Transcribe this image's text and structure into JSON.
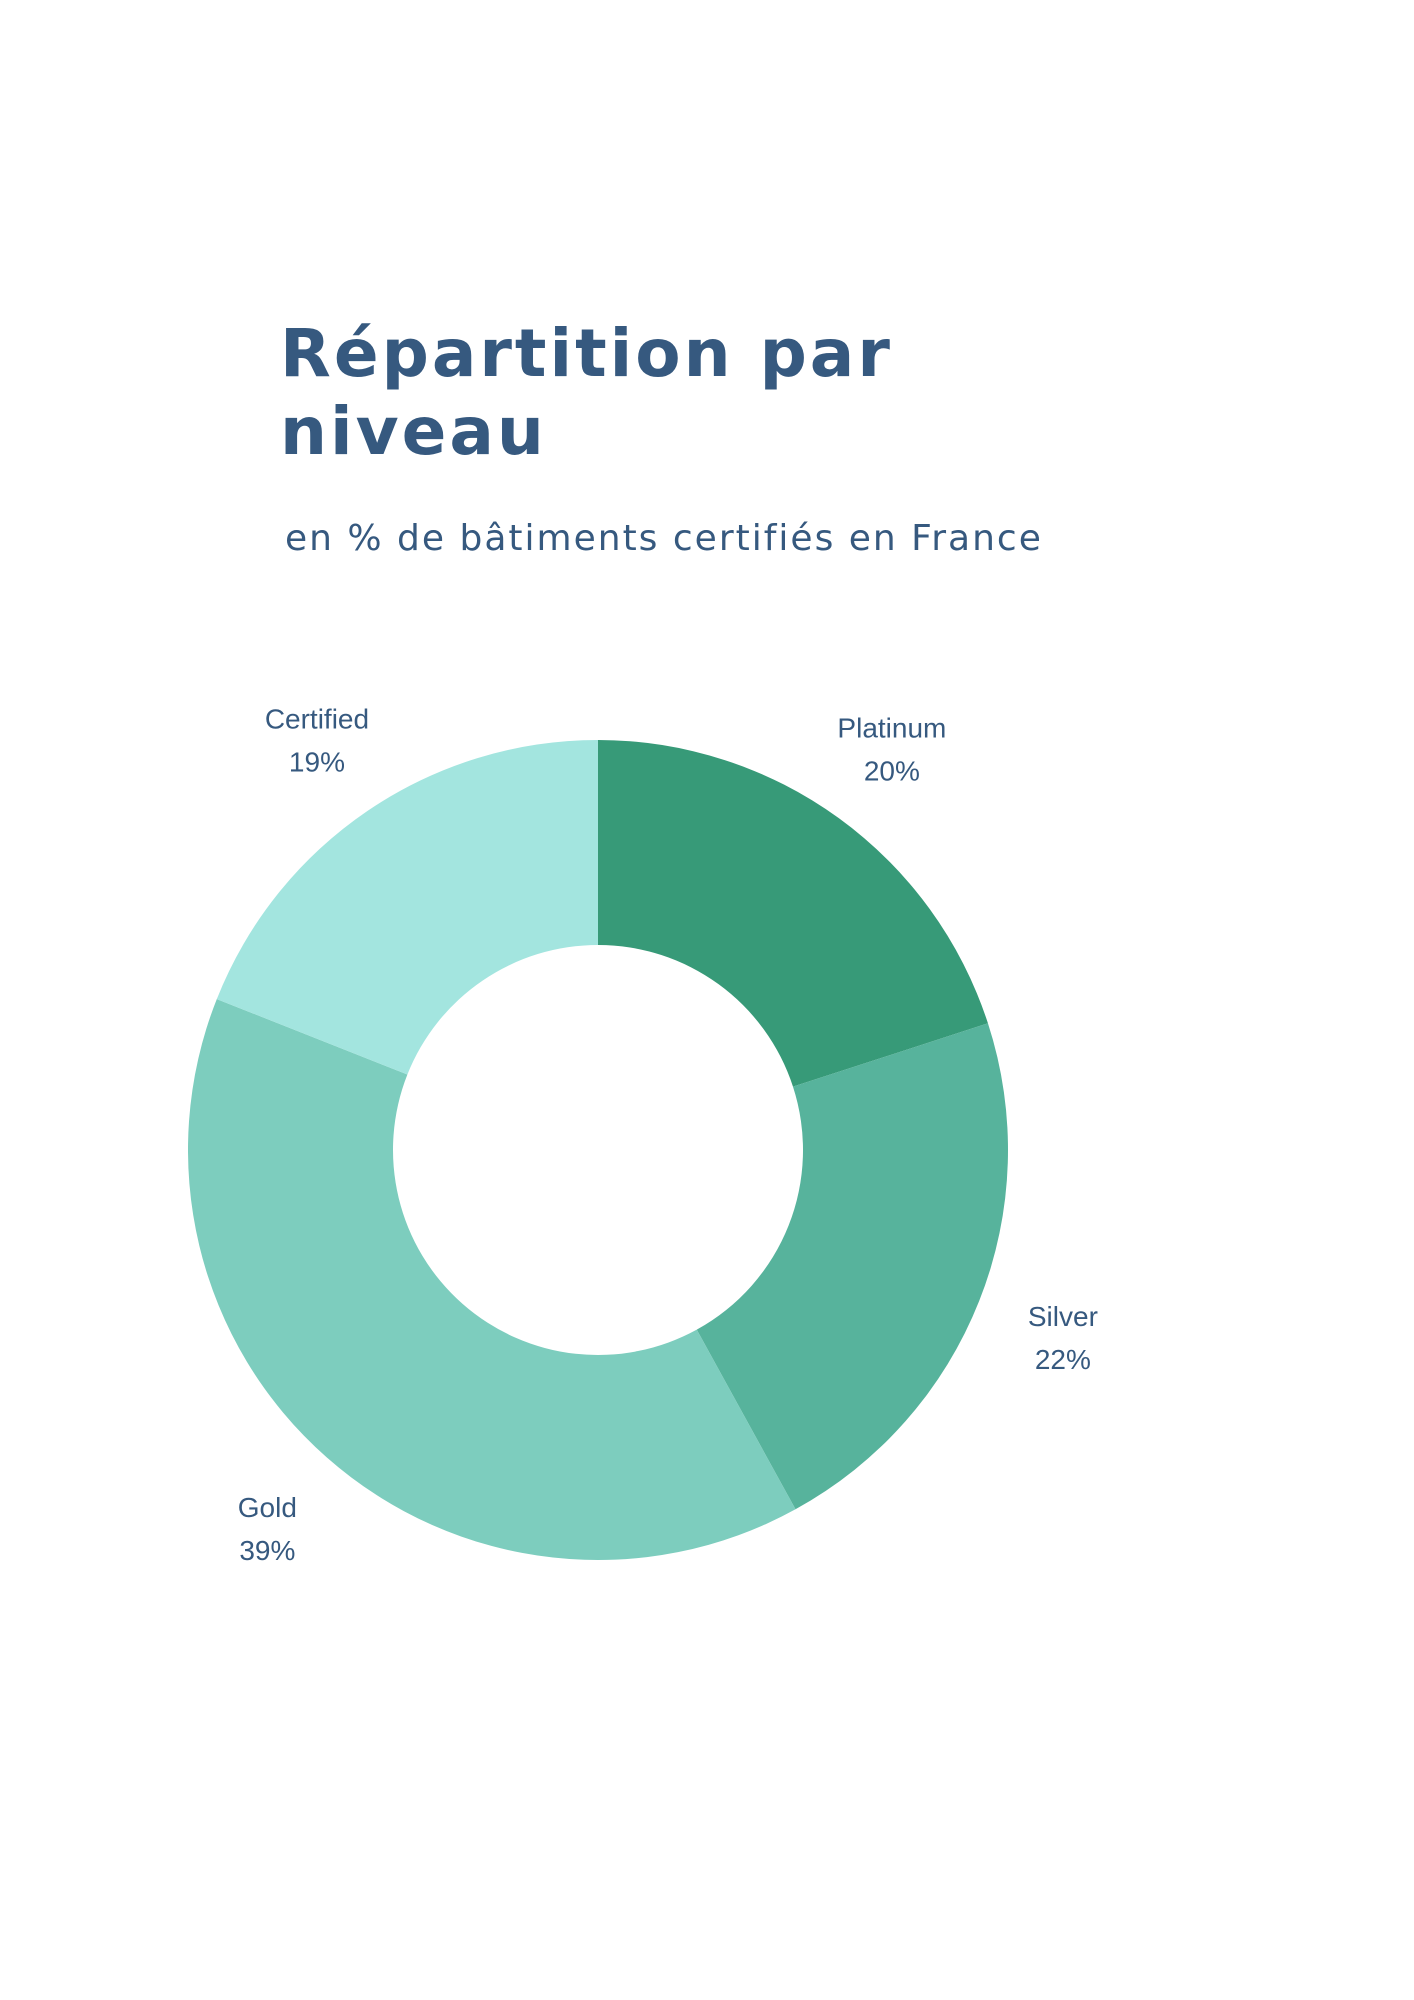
{
  "page": {
    "title": "Répartition par niveau",
    "subtitle": "en % de bâtiments certifiés en France"
  },
  "chart_data": {
    "type": "pie",
    "variant": "donut",
    "categories": [
      "Platinum",
      "Silver",
      "Gold",
      "Certified"
    ],
    "values": [
      20,
      22,
      39,
      19
    ],
    "value_labels": [
      "20%",
      "22%",
      "39%",
      "19%"
    ],
    "colors": [
      "#379a78",
      "#57b39c",
      "#7dcdbe",
      "#a3e5df"
    ],
    "label_color": "#36597f",
    "start_angle": "top",
    "direction": "clockwise",
    "labels": "outside"
  }
}
